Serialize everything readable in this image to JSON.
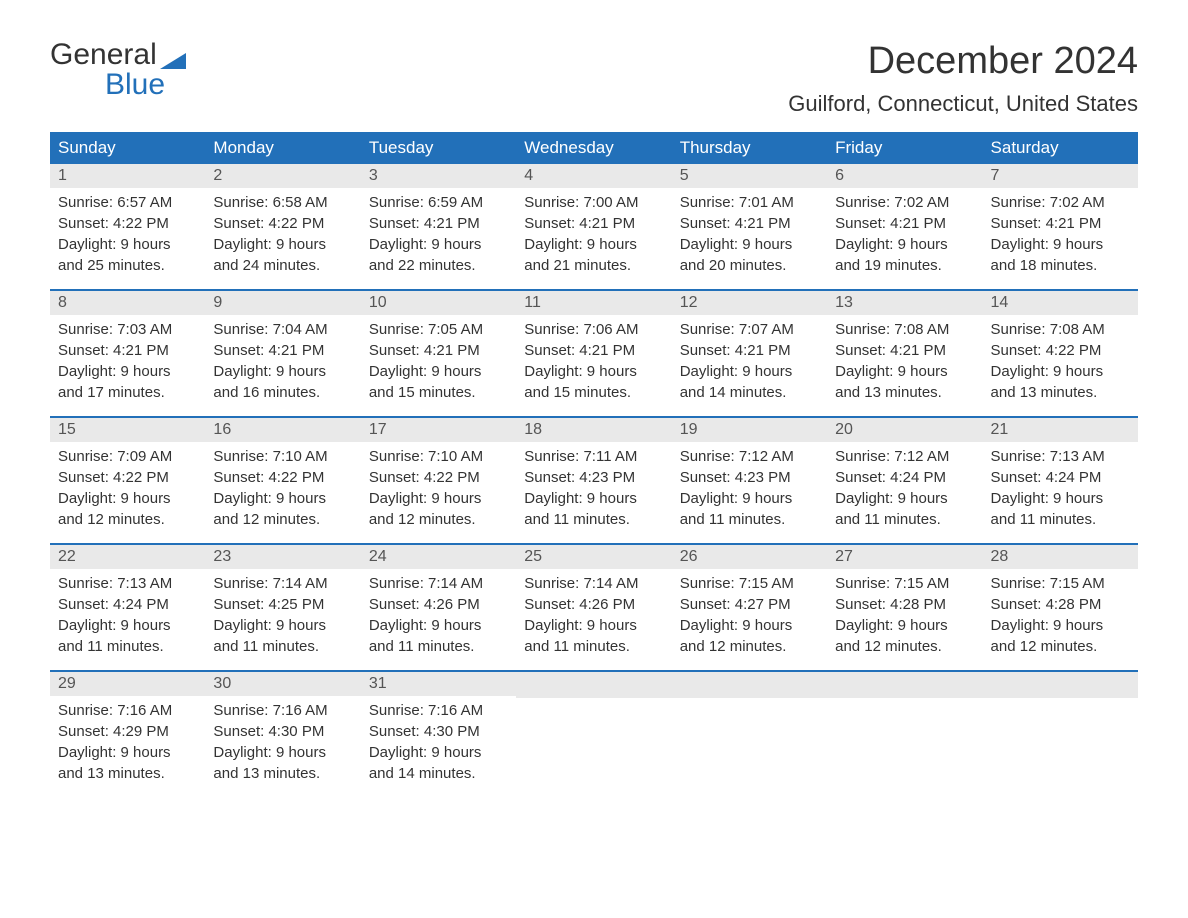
{
  "logo": {
    "text_top": "General",
    "text_bottom": "Blue",
    "text_top_color": "#333333",
    "text_bottom_color": "#2270b9",
    "icon_color": "#2270b9"
  },
  "header": {
    "month_title": "December 2024",
    "location": "Guilford, Connecticut, United States"
  },
  "colors": {
    "header_row_bg": "#2270b9",
    "header_row_text": "#ffffff",
    "day_number_bg": "#e9e9e9",
    "week_divider": "#2270b9",
    "body_text": "#333333",
    "background": "#ffffff"
  },
  "typography": {
    "month_title_fontsize": 38,
    "location_fontsize": 22,
    "day_header_fontsize": 17,
    "day_number_fontsize": 16,
    "day_content_fontsize": 15,
    "font_family": "Arial"
  },
  "calendar": {
    "type": "table",
    "day_headers": [
      "Sunday",
      "Monday",
      "Tuesday",
      "Wednesday",
      "Thursday",
      "Friday",
      "Saturday"
    ],
    "weeks": [
      [
        {
          "day": "1",
          "sunrise": "Sunrise: 6:57 AM",
          "sunset": "Sunset: 4:22 PM",
          "daylight1": "Daylight: 9 hours",
          "daylight2": "and 25 minutes."
        },
        {
          "day": "2",
          "sunrise": "Sunrise: 6:58 AM",
          "sunset": "Sunset: 4:22 PM",
          "daylight1": "Daylight: 9 hours",
          "daylight2": "and 24 minutes."
        },
        {
          "day": "3",
          "sunrise": "Sunrise: 6:59 AM",
          "sunset": "Sunset: 4:21 PM",
          "daylight1": "Daylight: 9 hours",
          "daylight2": "and 22 minutes."
        },
        {
          "day": "4",
          "sunrise": "Sunrise: 7:00 AM",
          "sunset": "Sunset: 4:21 PM",
          "daylight1": "Daylight: 9 hours",
          "daylight2": "and 21 minutes."
        },
        {
          "day": "5",
          "sunrise": "Sunrise: 7:01 AM",
          "sunset": "Sunset: 4:21 PM",
          "daylight1": "Daylight: 9 hours",
          "daylight2": "and 20 minutes."
        },
        {
          "day": "6",
          "sunrise": "Sunrise: 7:02 AM",
          "sunset": "Sunset: 4:21 PM",
          "daylight1": "Daylight: 9 hours",
          "daylight2": "and 19 minutes."
        },
        {
          "day": "7",
          "sunrise": "Sunrise: 7:02 AM",
          "sunset": "Sunset: 4:21 PM",
          "daylight1": "Daylight: 9 hours",
          "daylight2": "and 18 minutes."
        }
      ],
      [
        {
          "day": "8",
          "sunrise": "Sunrise: 7:03 AM",
          "sunset": "Sunset: 4:21 PM",
          "daylight1": "Daylight: 9 hours",
          "daylight2": "and 17 minutes."
        },
        {
          "day": "9",
          "sunrise": "Sunrise: 7:04 AM",
          "sunset": "Sunset: 4:21 PM",
          "daylight1": "Daylight: 9 hours",
          "daylight2": "and 16 minutes."
        },
        {
          "day": "10",
          "sunrise": "Sunrise: 7:05 AM",
          "sunset": "Sunset: 4:21 PM",
          "daylight1": "Daylight: 9 hours",
          "daylight2": "and 15 minutes."
        },
        {
          "day": "11",
          "sunrise": "Sunrise: 7:06 AM",
          "sunset": "Sunset: 4:21 PM",
          "daylight1": "Daylight: 9 hours",
          "daylight2": "and 15 minutes."
        },
        {
          "day": "12",
          "sunrise": "Sunrise: 7:07 AM",
          "sunset": "Sunset: 4:21 PM",
          "daylight1": "Daylight: 9 hours",
          "daylight2": "and 14 minutes."
        },
        {
          "day": "13",
          "sunrise": "Sunrise: 7:08 AM",
          "sunset": "Sunset: 4:21 PM",
          "daylight1": "Daylight: 9 hours",
          "daylight2": "and 13 minutes."
        },
        {
          "day": "14",
          "sunrise": "Sunrise: 7:08 AM",
          "sunset": "Sunset: 4:22 PM",
          "daylight1": "Daylight: 9 hours",
          "daylight2": "and 13 minutes."
        }
      ],
      [
        {
          "day": "15",
          "sunrise": "Sunrise: 7:09 AM",
          "sunset": "Sunset: 4:22 PM",
          "daylight1": "Daylight: 9 hours",
          "daylight2": "and 12 minutes."
        },
        {
          "day": "16",
          "sunrise": "Sunrise: 7:10 AM",
          "sunset": "Sunset: 4:22 PM",
          "daylight1": "Daylight: 9 hours",
          "daylight2": "and 12 minutes."
        },
        {
          "day": "17",
          "sunrise": "Sunrise: 7:10 AM",
          "sunset": "Sunset: 4:22 PM",
          "daylight1": "Daylight: 9 hours",
          "daylight2": "and 12 minutes."
        },
        {
          "day": "18",
          "sunrise": "Sunrise: 7:11 AM",
          "sunset": "Sunset: 4:23 PM",
          "daylight1": "Daylight: 9 hours",
          "daylight2": "and 11 minutes."
        },
        {
          "day": "19",
          "sunrise": "Sunrise: 7:12 AM",
          "sunset": "Sunset: 4:23 PM",
          "daylight1": "Daylight: 9 hours",
          "daylight2": "and 11 minutes."
        },
        {
          "day": "20",
          "sunrise": "Sunrise: 7:12 AM",
          "sunset": "Sunset: 4:24 PM",
          "daylight1": "Daylight: 9 hours",
          "daylight2": "and 11 minutes."
        },
        {
          "day": "21",
          "sunrise": "Sunrise: 7:13 AM",
          "sunset": "Sunset: 4:24 PM",
          "daylight1": "Daylight: 9 hours",
          "daylight2": "and 11 minutes."
        }
      ],
      [
        {
          "day": "22",
          "sunrise": "Sunrise: 7:13 AM",
          "sunset": "Sunset: 4:24 PM",
          "daylight1": "Daylight: 9 hours",
          "daylight2": "and 11 minutes."
        },
        {
          "day": "23",
          "sunrise": "Sunrise: 7:14 AM",
          "sunset": "Sunset: 4:25 PM",
          "daylight1": "Daylight: 9 hours",
          "daylight2": "and 11 minutes."
        },
        {
          "day": "24",
          "sunrise": "Sunrise: 7:14 AM",
          "sunset": "Sunset: 4:26 PM",
          "daylight1": "Daylight: 9 hours",
          "daylight2": "and 11 minutes."
        },
        {
          "day": "25",
          "sunrise": "Sunrise: 7:14 AM",
          "sunset": "Sunset: 4:26 PM",
          "daylight1": "Daylight: 9 hours",
          "daylight2": "and 11 minutes."
        },
        {
          "day": "26",
          "sunrise": "Sunrise: 7:15 AM",
          "sunset": "Sunset: 4:27 PM",
          "daylight1": "Daylight: 9 hours",
          "daylight2": "and 12 minutes."
        },
        {
          "day": "27",
          "sunrise": "Sunrise: 7:15 AM",
          "sunset": "Sunset: 4:28 PM",
          "daylight1": "Daylight: 9 hours",
          "daylight2": "and 12 minutes."
        },
        {
          "day": "28",
          "sunrise": "Sunrise: 7:15 AM",
          "sunset": "Sunset: 4:28 PM",
          "daylight1": "Daylight: 9 hours",
          "daylight2": "and 12 minutes."
        }
      ],
      [
        {
          "day": "29",
          "sunrise": "Sunrise: 7:16 AM",
          "sunset": "Sunset: 4:29 PM",
          "daylight1": "Daylight: 9 hours",
          "daylight2": "and 13 minutes."
        },
        {
          "day": "30",
          "sunrise": "Sunrise: 7:16 AM",
          "sunset": "Sunset: 4:30 PM",
          "daylight1": "Daylight: 9 hours",
          "daylight2": "and 13 minutes."
        },
        {
          "day": "31",
          "sunrise": "Sunrise: 7:16 AM",
          "sunset": "Sunset: 4:30 PM",
          "daylight1": "Daylight: 9 hours",
          "daylight2": "and 14 minutes."
        },
        null,
        null,
        null,
        null
      ]
    ]
  }
}
